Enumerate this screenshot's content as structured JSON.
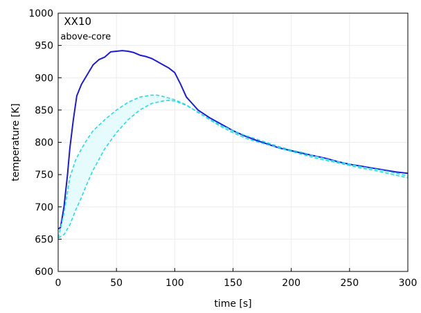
{
  "chart_data": {
    "type": "line",
    "xlabel": "time [s]",
    "ylabel": "temperature [K]",
    "xlim": [
      0,
      300
    ],
    "ylim": [
      600,
      1000
    ],
    "xticks": [
      0,
      50,
      100,
      150,
      200,
      250,
      300
    ],
    "yticks": [
      600,
      650,
      700,
      750,
      800,
      850,
      900,
      950,
      1000
    ],
    "grid": true,
    "annotations": [
      "XX10",
      "above-core"
    ],
    "colors": {
      "main": "#1a1adc",
      "band": "#22dde6",
      "band_fill": "#e6fbfc"
    },
    "series": [
      {
        "style": "solid",
        "x": [
          0,
          2,
          5,
          8,
          10,
          13,
          16,
          20,
          25,
          30,
          35,
          40,
          45,
          50,
          55,
          60,
          65,
          70,
          75,
          80,
          85,
          90,
          95,
          100,
          105,
          110,
          115,
          120,
          130,
          140,
          150,
          160,
          170,
          180,
          190,
          200,
          210,
          220,
          230,
          240,
          250,
          260,
          270,
          280,
          290,
          300
        ],
        "y": [
          666,
          668,
          700,
          750,
          790,
          835,
          872,
          890,
          905,
          920,
          928,
          932,
          940,
          941,
          942,
          941,
          939,
          935,
          933,
          930,
          925,
          920,
          915,
          908,
          890,
          870,
          860,
          850,
          838,
          828,
          818,
          810,
          803,
          797,
          791,
          787,
          783,
          779,
          775,
          770,
          766,
          763,
          760,
          757,
          754,
          752
        ]
      },
      {
        "style": "dashed",
        "x": [
          0,
          5,
          10,
          15,
          20,
          25,
          30,
          40,
          50,
          60,
          70,
          80,
          85,
          90,
          100,
          110,
          120,
          130,
          140,
          150,
          160,
          170,
          180,
          190,
          200,
          210,
          220,
          230,
          240,
          250,
          260,
          270,
          280,
          290,
          300
        ],
        "y": [
          652,
          690,
          745,
          773,
          790,
          805,
          818,
          835,
          850,
          862,
          870,
          873,
          873,
          871,
          866,
          858,
          846,
          836,
          826,
          818,
          811,
          805,
          799,
          793,
          788,
          784,
          779,
          774,
          770,
          766,
          762,
          759,
          756,
          752,
          748
        ]
      },
      {
        "style": "dashed",
        "x": [
          0,
          5,
          10,
          15,
          20,
          25,
          30,
          40,
          50,
          60,
          70,
          80,
          90,
          95,
          100,
          110,
          120,
          130,
          140,
          150,
          160,
          170,
          180,
          190,
          200,
          210,
          220,
          230,
          240,
          250,
          260,
          270,
          280,
          290,
          300
        ],
        "y": [
          652,
          657,
          672,
          695,
          715,
          737,
          757,
          790,
          815,
          835,
          850,
          860,
          864,
          865,
          864,
          857,
          847,
          835,
          824,
          815,
          807,
          801,
          796,
          791,
          786,
          781,
          776,
          772,
          768,
          764,
          760,
          757,
          753,
          749,
          745
        ]
      }
    ]
  }
}
